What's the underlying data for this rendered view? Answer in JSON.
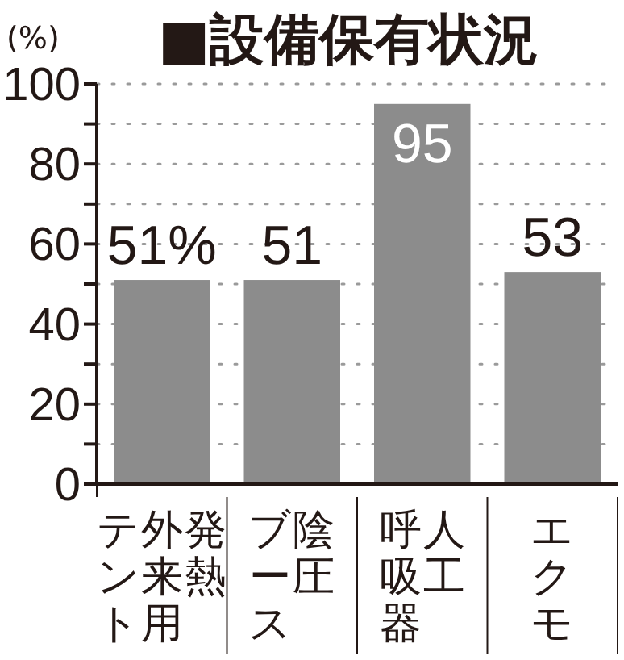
{
  "chart_data": {
    "type": "bar",
    "title": "■設備保有状況",
    "ylabel": "(%)",
    "categories": [
      "発熱外来用テント",
      "陰圧ブース",
      "人工呼吸器",
      "エクモ"
    ],
    "values": [
      51,
      51,
      95,
      53
    ],
    "color": "#8c8c8c",
    "value_labels": [
      "51%",
      "51",
      "95",
      "53"
    ],
    "ylim": [
      0,
      100
    ],
    "yticks": [
      0,
      {
        "value": 10,
        "label": null
      },
      20,
      {
        "value": 30,
        "label": null
      },
      40,
      {
        "value": 50,
        "label": null
      },
      60,
      {
        "value": 70,
        "label": null
      },
      80,
      {
        "value": 90,
        "label": null
      },
      100
    ],
    "grid": "y"
  }
}
